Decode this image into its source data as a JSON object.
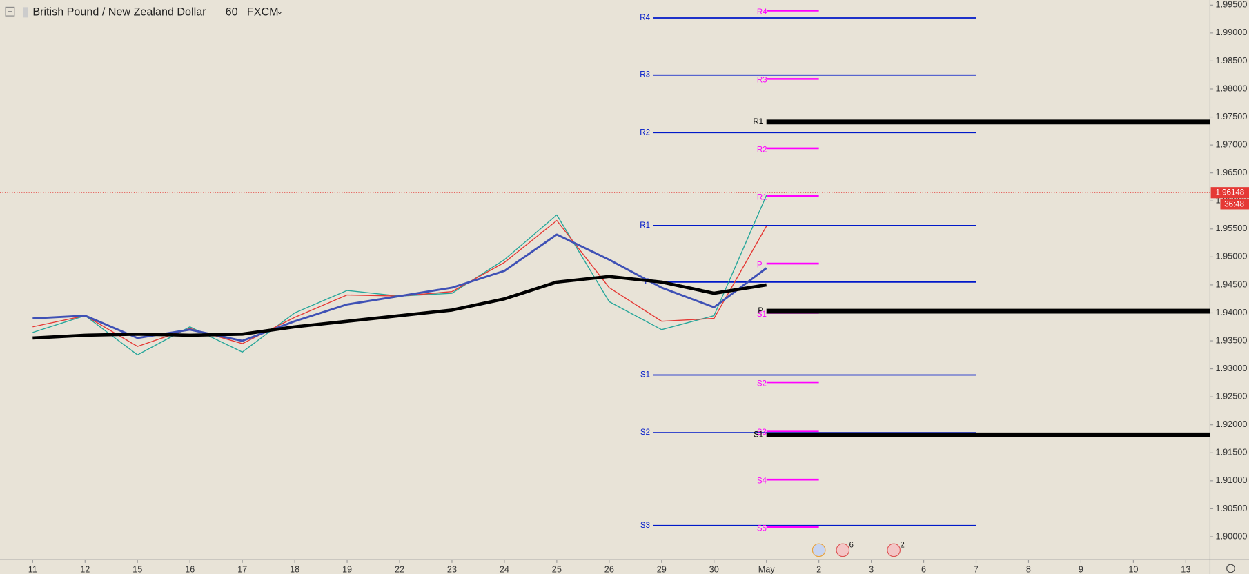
{
  "chart_data": {
    "type": "line",
    "title": "British Pound / New Zealand Dollar",
    "interval": "60",
    "source": "FXCM",
    "categories": [
      "11",
      "12",
      "15",
      "16",
      "17",
      "18",
      "19",
      "22",
      "23",
      "24",
      "25",
      "26",
      "29",
      "30",
      "May",
      "2",
      "3",
      "6",
      "7",
      "8",
      "9",
      "10",
      "13"
    ],
    "series": [
      {
        "color": "#26a69a",
        "values": [
          1.9365,
          1.9395,
          1.9325,
          1.9375,
          1.933,
          1.94,
          1.944,
          1.943,
          1.9435,
          1.9495,
          1.9575,
          1.942,
          1.937,
          1.9395,
          1.961,
          null,
          null,
          null,
          null,
          null,
          null,
          null,
          null
        ]
      },
      {
        "color": "#e53935",
        "values": [
          1.9375,
          1.9395,
          1.934,
          1.9372,
          1.9345,
          1.9392,
          1.9432,
          1.943,
          1.9438,
          1.949,
          1.9565,
          1.9445,
          1.9385,
          1.939,
          1.9555,
          null,
          null,
          null,
          null,
          null,
          null,
          null,
          null
        ]
      },
      {
        "color": "#3f51b5",
        "values": [
          1.939,
          1.9395,
          1.9355,
          1.937,
          1.935,
          1.9385,
          1.9415,
          1.943,
          1.9445,
          1.9475,
          1.954,
          1.9495,
          1.9445,
          1.941,
          1.948,
          null,
          null,
          null,
          null,
          null,
          null,
          null,
          null
        ]
      },
      {
        "color": "#000000",
        "values": [
          1.9355,
          1.936,
          1.9362,
          1.936,
          1.9362,
          1.9375,
          1.9385,
          1.9395,
          1.9405,
          1.9425,
          1.9455,
          1.9465,
          1.9455,
          1.9435,
          1.945,
          null,
          null,
          null,
          null,
          null,
          null,
          null,
          null
        ]
      }
    ],
    "pivots_weekly": {
      "color": "#0019c9",
      "levels": [
        {
          "label": "R4",
          "value": 1.9927
        },
        {
          "label": "R3",
          "value": 1.9825
        },
        {
          "label": "R2",
          "value": 1.9722
        },
        {
          "label": "R1",
          "value": 1.9556
        },
        {
          "label": "P",
          "value": 1.9455
        },
        {
          "label": "S1",
          "value": 1.9289
        },
        {
          "label": "S2",
          "value": 1.9186
        },
        {
          "label": "S3",
          "value": 1.902
        }
      ]
    },
    "pivots_daily": {
      "color": "#ff00ff",
      "levels": [
        {
          "label": "R4",
          "value": 1.994
        },
        {
          "label": "R3",
          "value": 1.9818
        },
        {
          "label": "R2",
          "value": 1.9694
        },
        {
          "label": "R1",
          "value": 1.9609
        },
        {
          "label": "P",
          "value": 1.9488
        },
        {
          "label": "S1",
          "value": 1.94
        },
        {
          "label": "S2",
          "value": 1.9276
        },
        {
          "label": "S3",
          "value": 1.9189
        },
        {
          "label": "S4",
          "value": 1.9102
        },
        {
          "label": "S5",
          "value": 1.9017
        }
      ]
    },
    "pivots_monthly": {
      "color": "#000000",
      "levels": [
        {
          "label": "R1",
          "value": 1.9741
        },
        {
          "label": "P",
          "value": 1.9403
        },
        {
          "label": "S1",
          "value": 1.9182
        }
      ]
    },
    "current_price": 1.96148,
    "countdown": "36:48",
    "events": [
      "6",
      "2"
    ],
    "ylim": [
      1.8959,
      1.9959
    ],
    "yticks": [
      {
        "value": 1.995,
        "label": "1.99500"
      },
      {
        "value": 1.99,
        "label": "1.99000"
      },
      {
        "value": 1.985,
        "label": "1.98500"
      },
      {
        "value": 1.98,
        "label": "1.98000"
      },
      {
        "value": 1.975,
        "label": "1.97500"
      },
      {
        "value": 1.97,
        "label": "1.97000"
      },
      {
        "value": 1.965,
        "label": "1.96500"
      },
      {
        "value": 1.96,
        "label": "1.96000"
      },
      {
        "value": 1.955,
        "label": "1.95500"
      },
      {
        "value": 1.95,
        "label": "1.95000"
      },
      {
        "value": 1.945,
        "label": "1.94500"
      },
      {
        "value": 1.94,
        "label": "1.94000"
      },
      {
        "value": 1.935,
        "label": "1.93500"
      },
      {
        "value": 1.93,
        "label": "1.93000"
      },
      {
        "value": 1.925,
        "label": "1.92500"
      },
      {
        "value": 1.92,
        "label": "1.92000"
      },
      {
        "value": 1.915,
        "label": "1.91500"
      },
      {
        "value": 1.91,
        "label": "1.91000"
      },
      {
        "value": 1.905,
        "label": "1.90500"
      },
      {
        "value": 1.9,
        "label": "1.90000"
      }
    ]
  }
}
